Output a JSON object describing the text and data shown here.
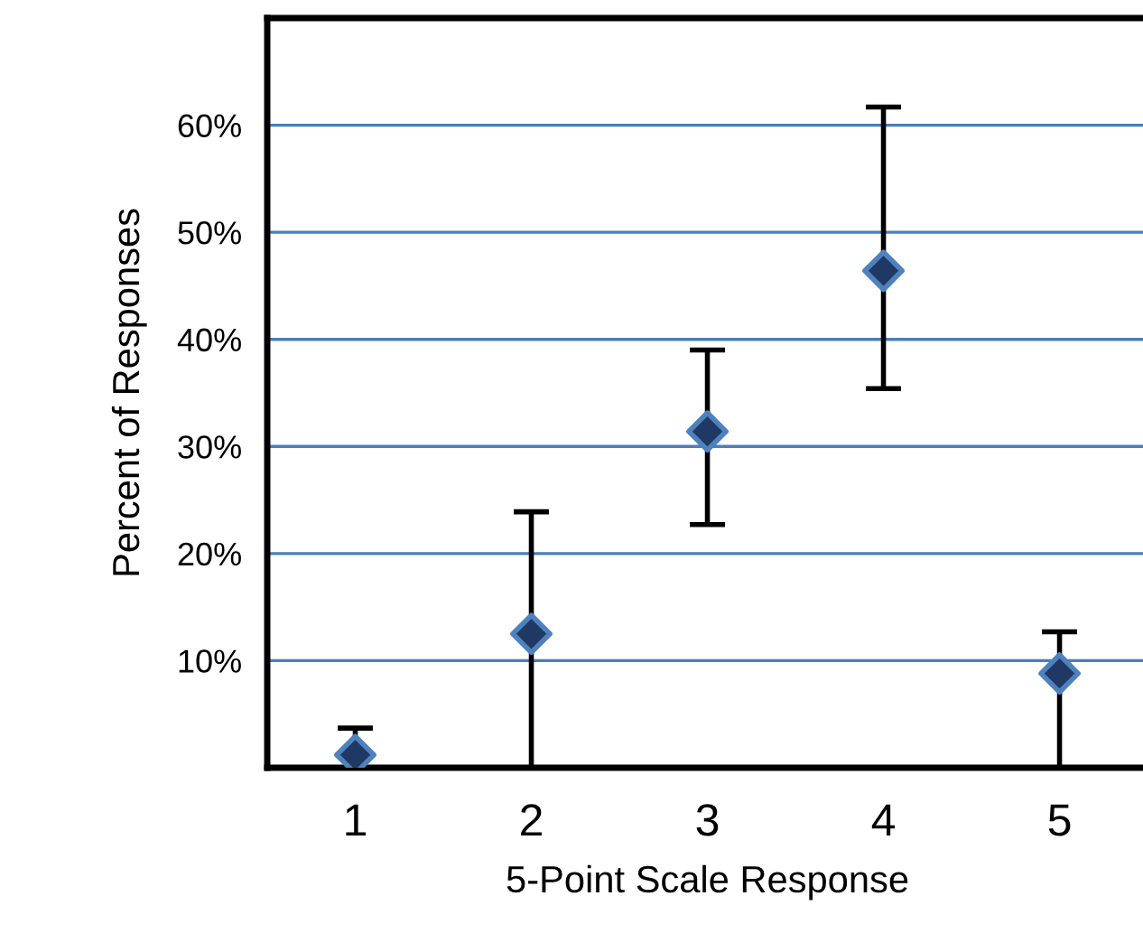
{
  "chart_data": {
    "type": "scatter",
    "xlabel": "5-Point Scale Response",
    "ylabel": "Percent of Responses",
    "categories": [
      "1",
      "2",
      "3",
      "4",
      "5"
    ],
    "values": [
      1.2,
      12.5,
      31.4,
      46.4,
      8.8
    ],
    "errors": [
      [
        0,
        3.7
      ],
      [
        0,
        23.9
      ],
      [
        22.7,
        39
      ],
      [
        35.4,
        61.7
      ],
      [
        0,
        12.7
      ]
    ],
    "color": "#1f3864",
    "marker": "diamond",
    "ylim": [
      0,
      70
    ],
    "yticks": [
      {
        "value": 10,
        "label": "10%"
      },
      {
        "value": 20,
        "label": "20%"
      },
      {
        "value": 30,
        "label": "30%"
      },
      {
        "value": 40,
        "label": "40%"
      },
      {
        "value": 50,
        "label": "50%"
      },
      {
        "value": 60,
        "label": "60%"
      }
    ],
    "grid": "y"
  }
}
